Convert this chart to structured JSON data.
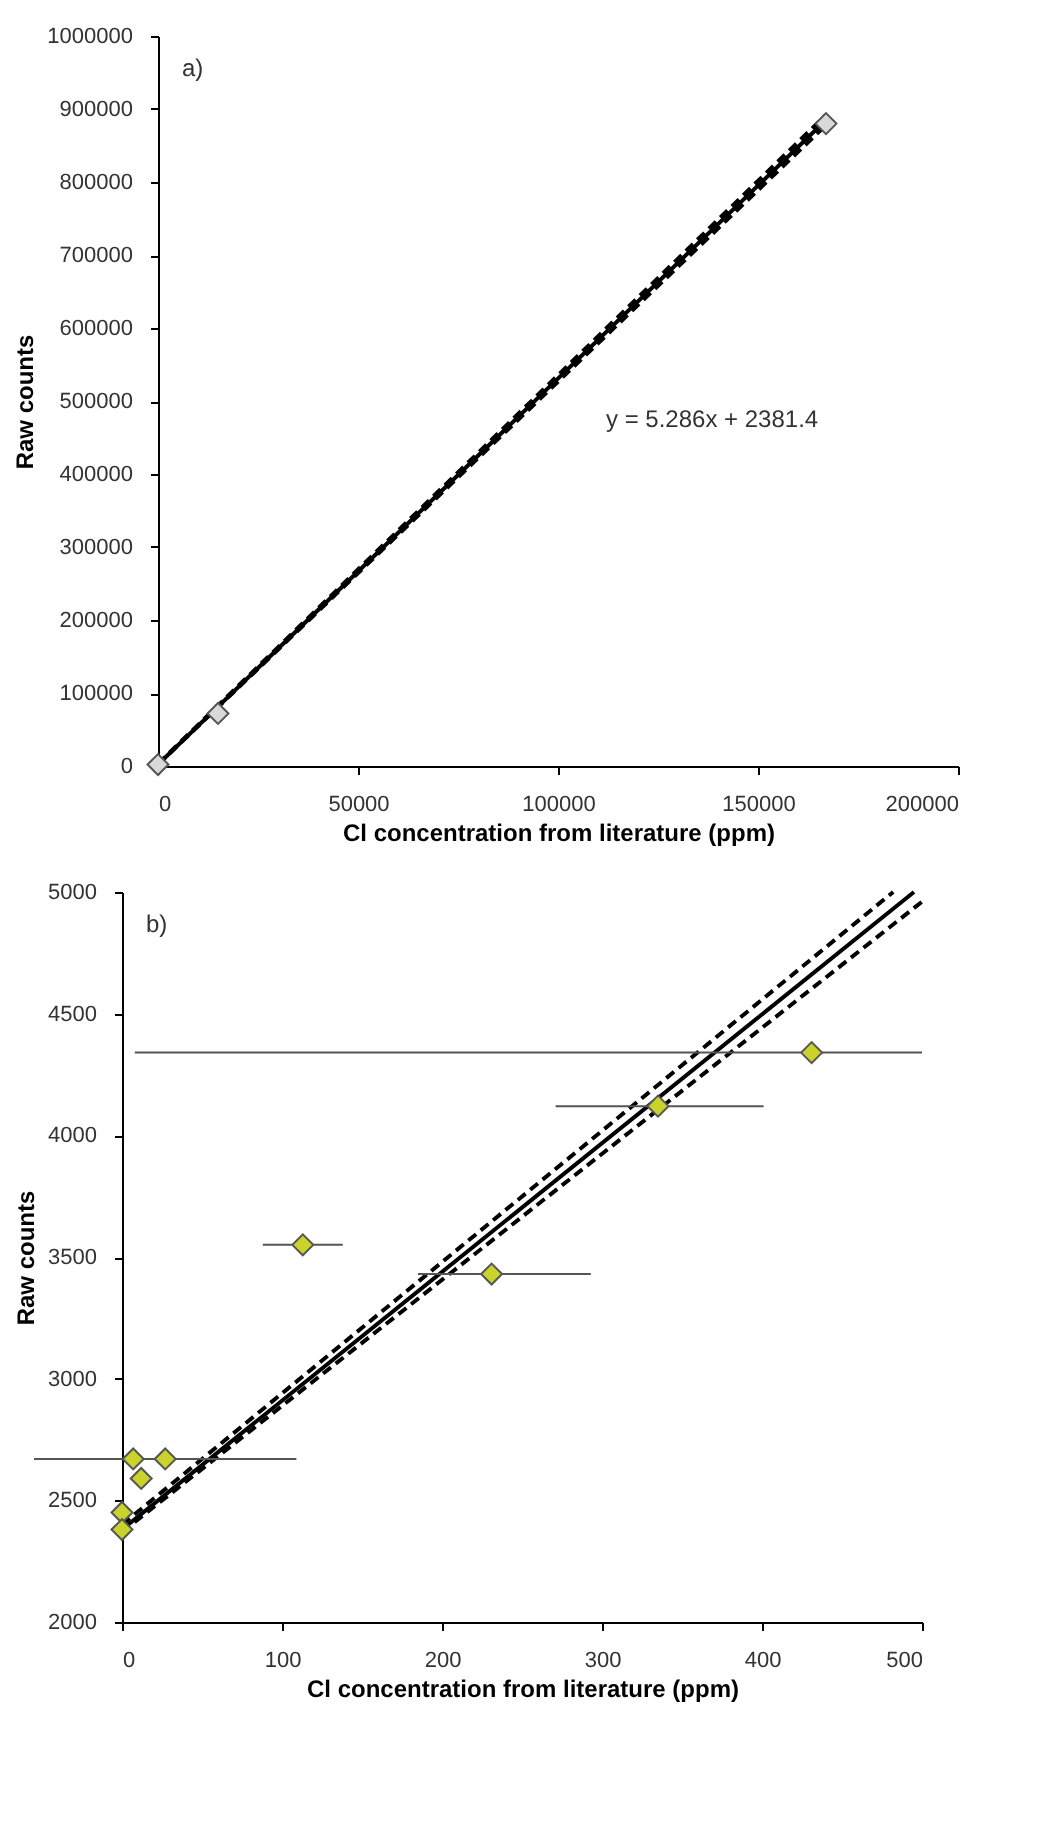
{
  "chart_data": [
    {
      "type": "scatter",
      "xlabel": "Cl concentration from literature (ppm)",
      "ylabel": "Raw counts",
      "annotations": [
        "a)",
        "y = 5.286x + 2381.4"
      ],
      "xlim": [
        0,
        200000
      ],
      "ylim": [
        0,
        1000000
      ],
      "xticks": [
        0,
        50000,
        100000,
        150000,
        200000
      ],
      "yticks": [
        0,
        100000,
        200000,
        300000,
        400000,
        500000,
        600000,
        700000,
        800000,
        900000,
        1000000
      ],
      "grid": false,
      "series": [
        {
          "type": "line",
          "color": "#000000",
          "line_style": "solid",
          "x": [
            0,
            167000
          ],
          "values": [
            2000,
            885000
          ]
        },
        {
          "type": "line",
          "color": "#000000",
          "line_style": "dashed",
          "x": [
            0,
            167000
          ],
          "values": [
            3000,
            892000
          ]
        },
        {
          "type": "line",
          "color": "#000000",
          "line_style": "dashed",
          "x": [
            0,
            167000
          ],
          "values": [
            2000,
            878000
          ]
        },
        {
          "type": "scatter",
          "marker": "diamond",
          "color": "#d9d9d9",
          "x": [
            0,
            15000,
            167000
          ],
          "values": [
            2000,
            72000,
            880000
          ]
        }
      ]
    },
    {
      "type": "scatter",
      "xlabel": "Cl concentration from literature (ppm)",
      "ylabel": "Raw counts",
      "annotations": [
        "b)"
      ],
      "xlim": [
        0,
        500
      ],
      "ylim": [
        2000,
        5000
      ],
      "xticks": [
        0,
        100,
        200,
        300,
        400,
        500
      ],
      "yticks": [
        2000,
        2500,
        3000,
        3500,
        4000,
        4500,
        5000
      ],
      "grid": false,
      "series": [
        {
          "type": "line",
          "color": "#000000",
          "line_style": "solid",
          "x": [
            0,
            495
          ],
          "values": [
            2380,
            5000
          ]
        },
        {
          "type": "line",
          "color": "#000000",
          "line_style": "dashed",
          "x": [
            0,
            482
          ],
          "values": [
            2400,
            5000
          ]
        },
        {
          "type": "line",
          "color": "#000000",
          "line_style": "dashed",
          "x": [
            0,
            500
          ],
          "values": [
            2370,
            4960
          ]
        },
        {
          "type": "scatter",
          "marker": "diamond",
          "color": "#c9d32b",
          "x": [
            7,
            12,
            0,
            0,
            27,
            113,
            231,
            335,
            431
          ],
          "values": [
            2670,
            2590,
            2450,
            2380,
            2670,
            3550,
            3430,
            4120,
            4340
          ],
          "xerrors": [
            null,
            null,
            null,
            null,
            82,
            25,
            [
              185,
              293
            ],
            [
              271,
              401
            ],
            [
              8,
              500
            ]
          ]
        }
      ]
    }
  ]
}
